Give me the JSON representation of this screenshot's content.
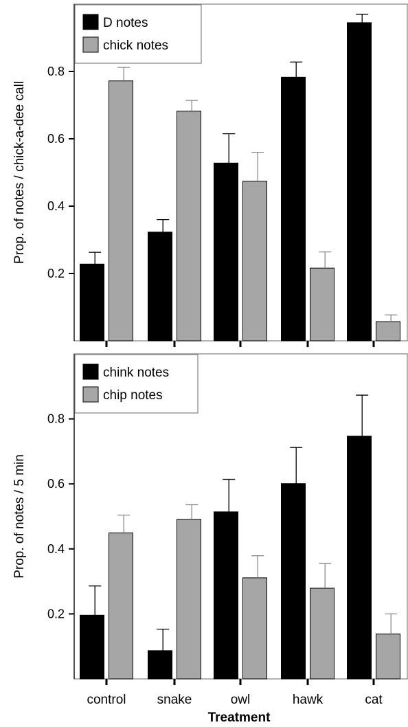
{
  "colors": {
    "series_dark": "#000000",
    "series_light": "#a6a6a6",
    "axis": "#000000",
    "frame": "#808080",
    "background": "#ffffff"
  },
  "xlabel": "Treatment",
  "chart_data": [
    {
      "type": "bar",
      "categories": [
        "control",
        "snake",
        "owl",
        "hawk",
        "cat"
      ],
      "ylabel": "Prop. of notes / chick-a-dee call",
      "ylim": [
        0,
        1
      ],
      "yticks": [
        "0.2",
        "0.4",
        "0.6",
        "0.8"
      ],
      "ytick_values": [
        0.2,
        0.4,
        0.6,
        0.8
      ],
      "legend_position": "top-left",
      "grid": false,
      "series": [
        {
          "name": "D notes",
          "values": [
            0.228,
            0.323,
            0.528,
            0.783,
            0.945
          ],
          "errors": [
            0.035,
            0.037,
            0.087,
            0.045,
            0.025
          ]
        },
        {
          "name": "chick notes",
          "values": [
            0.772,
            0.682,
            0.474,
            0.216,
            0.057
          ],
          "errors": [
            0.04,
            0.032,
            0.086,
            0.048,
            0.02
          ]
        }
      ]
    },
    {
      "type": "bar",
      "categories": [
        "control",
        "snake",
        "owl",
        "hawk",
        "cat"
      ],
      "ylabel": "Prop. of notes / 5 min",
      "ylim": [
        0,
        1
      ],
      "yticks": [
        "0.2",
        "0.4",
        "0.6",
        "0.8"
      ],
      "ytick_values": [
        0.2,
        0.4,
        0.6,
        0.8
      ],
      "legend_position": "top-left",
      "grid": false,
      "series": [
        {
          "name": "chink notes",
          "values": [
            0.196,
            0.087,
            0.514,
            0.601,
            0.747
          ],
          "errors": [
            0.09,
            0.066,
            0.1,
            0.111,
            0.126
          ]
        },
        {
          "name": "chip notes",
          "values": [
            0.449,
            0.491,
            0.311,
            0.279,
            0.138
          ],
          "errors": [
            0.055,
            0.045,
            0.068,
            0.076,
            0.062
          ]
        }
      ]
    }
  ]
}
